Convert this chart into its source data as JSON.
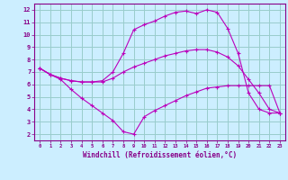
{
  "xlabel": "Windchill (Refroidissement éolien,°C)",
  "bg_color": "#cceeff",
  "grid_color": "#99cccc",
  "line_color": "#bb00bb",
  "xlim": [
    -0.5,
    23.5
  ],
  "ylim": [
    1.5,
    12.5
  ],
  "xticks": [
    0,
    1,
    2,
    3,
    4,
    5,
    6,
    7,
    8,
    9,
    10,
    11,
    12,
    13,
    14,
    15,
    16,
    17,
    18,
    19,
    20,
    21,
    22,
    23
  ],
  "yticks": [
    2,
    3,
    4,
    5,
    6,
    7,
    8,
    9,
    10,
    11,
    12
  ],
  "line1_x": [
    0,
    1,
    2,
    3,
    4,
    5,
    6,
    7,
    8,
    9,
    10,
    11,
    12,
    13,
    14,
    15,
    16,
    17,
    18,
    19,
    20,
    21,
    22,
    23
  ],
  "line1_y": [
    7.3,
    6.8,
    6.4,
    5.6,
    4.9,
    4.3,
    3.7,
    3.1,
    2.2,
    2.0,
    3.4,
    3.9,
    4.3,
    4.7,
    5.1,
    5.4,
    5.7,
    5.8,
    5.9,
    5.9,
    5.9,
    5.9,
    5.9,
    3.7
  ],
  "line2_x": [
    0,
    1,
    2,
    3,
    4,
    5,
    6,
    7,
    8,
    9,
    10,
    11,
    12,
    13,
    14,
    15,
    16,
    17,
    18,
    19,
    20,
    21,
    22,
    23
  ],
  "line2_y": [
    7.3,
    6.8,
    6.5,
    6.3,
    6.2,
    6.2,
    6.2,
    6.5,
    7.0,
    7.4,
    7.7,
    8.0,
    8.3,
    8.5,
    8.7,
    8.8,
    8.8,
    8.6,
    8.2,
    7.5,
    6.4,
    5.3,
    4.0,
    3.7
  ],
  "line3_x": [
    0,
    1,
    2,
    3,
    4,
    5,
    6,
    7,
    8,
    9,
    10,
    11,
    12,
    13,
    14,
    15,
    16,
    17,
    18,
    19,
    20,
    21,
    22,
    23
  ],
  "line3_y": [
    7.3,
    6.8,
    6.5,
    6.3,
    6.2,
    6.2,
    6.3,
    7.0,
    8.5,
    10.4,
    10.8,
    11.1,
    11.5,
    11.8,
    11.9,
    11.7,
    12.0,
    11.8,
    10.5,
    8.5,
    5.3,
    4.0,
    3.7,
    3.7
  ]
}
